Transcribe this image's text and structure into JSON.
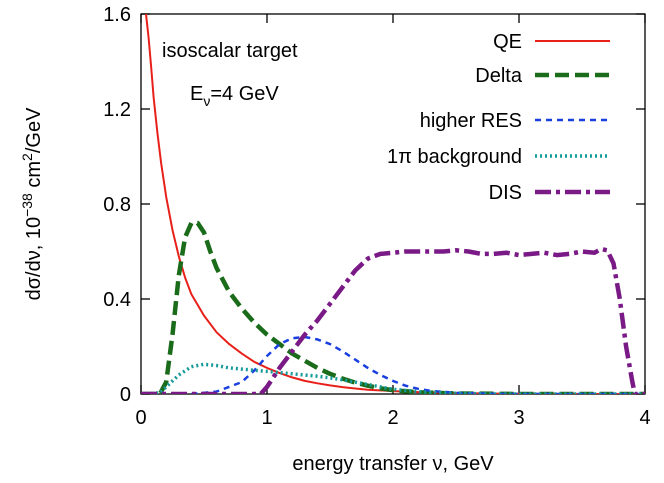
{
  "chart_data": {
    "type": "line",
    "title": "",
    "xlabel": "energy transfer  ν, GeV",
    "ylabel": {
      "prefix": "dσ/dν,  10",
      "exp1": "−38",
      "mid": " cm",
      "exp2": "2",
      "suffix": "/GeV"
    },
    "xlim": [
      0,
      4
    ],
    "ylim": [
      0,
      1.6
    ],
    "xticks": [
      0,
      1,
      2,
      3,
      4
    ],
    "yticks": [
      0,
      0.4,
      0.8,
      1.2,
      1.6
    ],
    "xtick_labels": [
      "0",
      "1",
      "2",
      "3",
      "4"
    ],
    "ytick_labels": [
      "0",
      "0.4",
      "0.8",
      "1.2",
      "1.6"
    ],
    "grid": false,
    "legend_position": "top-right",
    "annotations": {
      "line1": "isoscalar target",
      "line2_main": "E",
      "line2_sub": "ν",
      "line2_rest": "=4 GeV"
    },
    "series": [
      {
        "name": "QE",
        "color": "#e8201a",
        "dash": "solid",
        "points": [
          [
            0.04,
            1.6
          ],
          [
            0.06,
            1.5
          ],
          [
            0.08,
            1.38
          ],
          [
            0.1,
            1.25
          ],
          [
            0.13,
            1.1
          ],
          [
            0.16,
            0.97
          ],
          [
            0.2,
            0.83
          ],
          [
            0.25,
            0.69
          ],
          [
            0.3,
            0.58
          ],
          [
            0.35,
            0.49
          ],
          [
            0.4,
            0.42
          ],
          [
            0.5,
            0.33
          ],
          [
            0.6,
            0.26
          ],
          [
            0.7,
            0.21
          ],
          [
            0.8,
            0.17
          ],
          [
            0.9,
            0.135
          ],
          [
            1.0,
            0.11
          ],
          [
            1.1,
            0.088
          ],
          [
            1.2,
            0.07
          ],
          [
            1.3,
            0.055
          ],
          [
            1.4,
            0.045
          ],
          [
            1.5,
            0.036
          ],
          [
            1.6,
            0.029
          ],
          [
            1.7,
            0.023
          ],
          [
            1.8,
            0.018
          ],
          [
            2.0,
            0.012
          ],
          [
            2.2,
            0.008
          ],
          [
            2.5,
            0.004
          ],
          [
            3.0,
            0.001
          ],
          [
            3.5,
            0.0
          ],
          [
            4.0,
            0.0
          ]
        ]
      },
      {
        "name": "Delta",
        "color": "#1a6b1a",
        "dash": "dash",
        "points": [
          [
            0.0,
            0.0
          ],
          [
            0.15,
            0.0
          ],
          [
            0.2,
            0.05
          ],
          [
            0.25,
            0.25
          ],
          [
            0.3,
            0.5
          ],
          [
            0.35,
            0.66
          ],
          [
            0.4,
            0.72
          ],
          [
            0.45,
            0.72
          ],
          [
            0.5,
            0.68
          ],
          [
            0.55,
            0.6
          ],
          [
            0.6,
            0.53
          ],
          [
            0.7,
            0.43
          ],
          [
            0.8,
            0.36
          ],
          [
            0.9,
            0.3
          ],
          [
            1.0,
            0.25
          ],
          [
            1.1,
            0.21
          ],
          [
            1.2,
            0.17
          ],
          [
            1.3,
            0.14
          ],
          [
            1.4,
            0.11
          ],
          [
            1.5,
            0.085
          ],
          [
            1.6,
            0.065
          ],
          [
            1.7,
            0.048
          ],
          [
            1.8,
            0.035
          ],
          [
            1.9,
            0.024
          ],
          [
            2.0,
            0.016
          ],
          [
            2.2,
            0.007
          ],
          [
            2.5,
            0.002
          ],
          [
            3.0,
            0.0
          ],
          [
            4.0,
            0.0
          ]
        ]
      },
      {
        "name": "higher RES",
        "color": "#1a3fe0",
        "dash": "shortdash",
        "points": [
          [
            0.4,
            0.0
          ],
          [
            0.6,
            0.01
          ],
          [
            0.8,
            0.05
          ],
          [
            0.9,
            0.1
          ],
          [
            1.0,
            0.16
          ],
          [
            1.1,
            0.21
          ],
          [
            1.2,
            0.235
          ],
          [
            1.3,
            0.24
          ],
          [
            1.4,
            0.23
          ],
          [
            1.5,
            0.21
          ],
          [
            1.6,
            0.18
          ],
          [
            1.7,
            0.145
          ],
          [
            1.8,
            0.11
          ],
          [
            1.9,
            0.08
          ],
          [
            2.0,
            0.055
          ],
          [
            2.1,
            0.035
          ],
          [
            2.2,
            0.022
          ],
          [
            2.3,
            0.013
          ],
          [
            2.5,
            0.005
          ],
          [
            2.8,
            0.001
          ],
          [
            3.0,
            0.0
          ],
          [
            4.0,
            0.0
          ]
        ]
      },
      {
        "name": "1π background",
        "color": "#159a9a",
        "dash": "dot",
        "points": [
          [
            0.0,
            0.0
          ],
          [
            0.15,
            0.005
          ],
          [
            0.2,
            0.03
          ],
          [
            0.3,
            0.08
          ],
          [
            0.4,
            0.115
          ],
          [
            0.5,
            0.125
          ],
          [
            0.6,
            0.12
          ],
          [
            0.7,
            0.11
          ],
          [
            0.8,
            0.105
          ],
          [
            0.9,
            0.1
          ],
          [
            1.0,
            0.095
          ],
          [
            1.1,
            0.09
          ],
          [
            1.2,
            0.085
          ],
          [
            1.3,
            0.08
          ],
          [
            1.4,
            0.075
          ],
          [
            1.5,
            0.068
          ],
          [
            1.6,
            0.06
          ],
          [
            1.7,
            0.05
          ],
          [
            1.8,
            0.04
          ],
          [
            1.9,
            0.03
          ],
          [
            2.0,
            0.02
          ],
          [
            2.2,
            0.01
          ],
          [
            2.5,
            0.003
          ],
          [
            2.8,
            0.0
          ],
          [
            4.0,
            0.0
          ]
        ]
      },
      {
        "name": "DIS",
        "color": "#7a1a86",
        "dash": "dashdot",
        "points": [
          [
            0.0,
            0.0
          ],
          [
            0.95,
            0.0
          ],
          [
            1.0,
            0.03
          ],
          [
            1.05,
            0.07
          ],
          [
            1.1,
            0.11
          ],
          [
            1.2,
            0.18
          ],
          [
            1.3,
            0.25
          ],
          [
            1.4,
            0.31
          ],
          [
            1.5,
            0.38
          ],
          [
            1.6,
            0.45
          ],
          [
            1.7,
            0.52
          ],
          [
            1.8,
            0.57
          ],
          [
            1.9,
            0.59
          ],
          [
            2.0,
            0.595
          ],
          [
            2.1,
            0.6
          ],
          [
            2.2,
            0.6
          ],
          [
            2.3,
            0.6
          ],
          [
            2.4,
            0.6
          ],
          [
            2.5,
            0.605
          ],
          [
            2.6,
            0.6
          ],
          [
            2.7,
            0.59
          ],
          [
            2.8,
            0.59
          ],
          [
            2.9,
            0.595
          ],
          [
            3.0,
            0.585
          ],
          [
            3.1,
            0.59
          ],
          [
            3.2,
            0.595
          ],
          [
            3.3,
            0.585
          ],
          [
            3.4,
            0.59
          ],
          [
            3.5,
            0.6
          ],
          [
            3.6,
            0.595
          ],
          [
            3.65,
            0.61
          ],
          [
            3.7,
            0.605
          ],
          [
            3.75,
            0.55
          ],
          [
            3.8,
            0.4
          ],
          [
            3.85,
            0.2
          ],
          [
            3.9,
            0.05
          ],
          [
            3.92,
            0.0
          ],
          [
            4.0,
            0.0
          ]
        ]
      }
    ]
  }
}
